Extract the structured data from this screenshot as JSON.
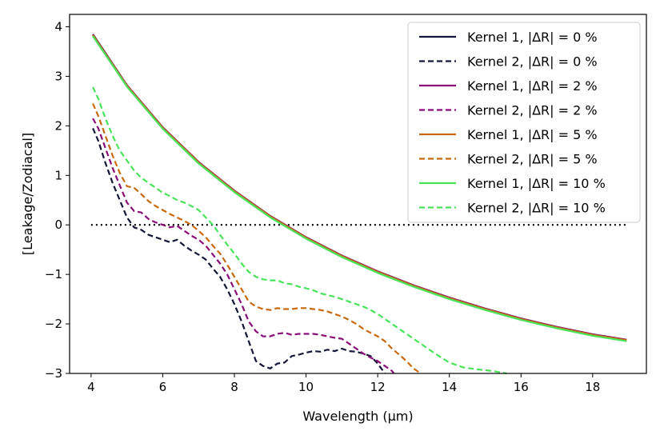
{
  "chart_data": {
    "type": "line",
    "xlabel": "Wavelength (μm)",
    "ylabel": "[Leakage/Zodiacal]",
    "xlim": [
      3.4,
      19.5
    ],
    "ylim": [
      -3,
      4.25
    ],
    "xticks": [
      "4",
      "6",
      "8",
      "10",
      "12",
      "14",
      "16",
      "18"
    ],
    "yticks": [
      "−3",
      "−2",
      "−1",
      "0",
      "1",
      "2",
      "3",
      "4"
    ],
    "legend_position": "top-right",
    "reference_line": {
      "y": 0,
      "x_range": [
        4,
        19
      ],
      "style": "dotted",
      "color": "#000000"
    },
    "series": [
      {
        "name": "Kernel 1, |ΔR| = 0 %",
        "color": "#12173a",
        "dash": "solid",
        "x": [
          4.05,
          5,
          6,
          7,
          8,
          9,
          10,
          11,
          12,
          13,
          14,
          15,
          16,
          17,
          18,
          18.95
        ],
        "y": [
          3.85,
          2.82,
          1.97,
          1.27,
          0.69,
          0.18,
          -0.25,
          -0.62,
          -0.94,
          -1.22,
          -1.47,
          -1.69,
          -1.89,
          -2.06,
          -2.21,
          -2.32
        ]
      },
      {
        "name": "Kernel 2, |ΔR| = 0 %",
        "color": "#12173a",
        "dash": "dashed",
        "x": [
          4.05,
          4.2,
          4.4,
          4.6,
          4.8,
          5.0,
          5.2,
          5.4,
          5.6,
          5.8,
          6.0,
          6.2,
          6.4,
          6.6,
          6.8,
          7.0,
          7.2,
          7.4,
          7.6,
          7.8,
          8.0,
          8.2,
          8.4,
          8.6,
          8.8,
          9.0,
          9.2,
          9.4,
          9.6,
          9.8,
          10.0,
          10.2,
          10.4,
          10.6,
          10.8,
          11.0,
          11.2,
          11.4,
          11.6,
          11.8,
          12.0,
          12.2
        ],
        "y": [
          1.95,
          1.7,
          1.25,
          0.85,
          0.5,
          0.15,
          -0.05,
          -0.1,
          -0.2,
          -0.25,
          -0.3,
          -0.35,
          -0.3,
          -0.42,
          -0.52,
          -0.6,
          -0.7,
          -0.88,
          -1.05,
          -1.3,
          -1.6,
          -1.95,
          -2.35,
          -2.75,
          -2.85,
          -2.9,
          -2.8,
          -2.78,
          -2.65,
          -2.62,
          -2.58,
          -2.55,
          -2.56,
          -2.52,
          -2.55,
          -2.5,
          -2.55,
          -2.56,
          -2.6,
          -2.65,
          -2.8,
          -3.0
        ]
      },
      {
        "name": "Kernel 1, |ΔR| = 2 %",
        "color": "#8a0d78",
        "dash": "solid",
        "x": [
          4.05,
          5,
          6,
          7,
          8,
          9,
          10,
          11,
          12,
          13,
          14,
          15,
          16,
          17,
          18,
          18.95
        ],
        "y": [
          3.84,
          2.82,
          1.97,
          1.27,
          0.69,
          0.18,
          -0.25,
          -0.62,
          -0.94,
          -1.22,
          -1.47,
          -1.69,
          -1.89,
          -2.06,
          -2.21,
          -2.32
        ]
      },
      {
        "name": "Kernel 2, |ΔR| = 2 %",
        "color": "#8a0d78",
        "dash": "dashed",
        "x": [
          4.05,
          4.2,
          4.4,
          4.6,
          4.8,
          5.0,
          5.2,
          5.4,
          5.6,
          5.8,
          6.0,
          6.2,
          6.4,
          6.6,
          6.8,
          7.0,
          7.2,
          7.4,
          7.6,
          7.8,
          8.0,
          8.2,
          8.4,
          8.6,
          8.8,
          9.0,
          9.2,
          9.4,
          9.6,
          9.8,
          10.0,
          10.2,
          10.4,
          10.6,
          10.8,
          11.0,
          11.2,
          11.4,
          11.6,
          11.8,
          12.0,
          12.2,
          12.4,
          12.45
        ],
        "y": [
          2.15,
          1.95,
          1.55,
          1.15,
          0.8,
          0.45,
          0.28,
          0.25,
          0.12,
          0.05,
          0.0,
          -0.05,
          -0.02,
          -0.12,
          -0.22,
          -0.3,
          -0.42,
          -0.6,
          -0.78,
          -1.0,
          -1.3,
          -1.6,
          -1.95,
          -2.15,
          -2.25,
          -2.25,
          -2.2,
          -2.18,
          -2.22,
          -2.2,
          -2.2,
          -2.2,
          -2.22,
          -2.25,
          -2.28,
          -2.3,
          -2.4,
          -2.5,
          -2.6,
          -2.68,
          -2.75,
          -2.85,
          -2.95,
          -3.0
        ]
      },
      {
        "name": "Kernel 1, |ΔR| = 5 %",
        "color": "#c8690e",
        "dash": "solid",
        "x": [
          4.05,
          5,
          6,
          7,
          8,
          9,
          10,
          11,
          12,
          13,
          14,
          15,
          16,
          17,
          18,
          18.95
        ],
        "y": [
          3.83,
          2.81,
          1.96,
          1.26,
          0.68,
          0.17,
          -0.26,
          -0.63,
          -0.95,
          -1.23,
          -1.48,
          -1.7,
          -1.9,
          -2.07,
          -2.22,
          -2.33
        ]
      },
      {
        "name": "Kernel 2, |ΔR| = 5 %",
        "color": "#c8690e",
        "dash": "dashed",
        "x": [
          4.05,
          4.2,
          4.4,
          4.6,
          4.8,
          5.0,
          5.2,
          5.4,
          5.6,
          5.8,
          6.0,
          6.2,
          6.4,
          6.6,
          6.8,
          7.0,
          7.2,
          7.4,
          7.6,
          7.8,
          8.0,
          8.2,
          8.4,
          8.6,
          8.8,
          9.0,
          9.2,
          9.4,
          9.6,
          9.8,
          10.0,
          10.2,
          10.4,
          10.6,
          10.8,
          11.0,
          11.2,
          11.4,
          11.6,
          11.8,
          12.0,
          12.2,
          12.4,
          12.6,
          12.8,
          13.0,
          13.2
        ],
        "y": [
          2.45,
          2.2,
          1.8,
          1.4,
          1.05,
          0.78,
          0.75,
          0.62,
          0.48,
          0.38,
          0.3,
          0.22,
          0.15,
          0.08,
          0.0,
          -0.12,
          -0.25,
          -0.42,
          -0.58,
          -0.8,
          -1.05,
          -1.3,
          -1.55,
          -1.65,
          -1.7,
          -1.72,
          -1.68,
          -1.7,
          -1.7,
          -1.68,
          -1.68,
          -1.7,
          -1.72,
          -1.75,
          -1.8,
          -1.85,
          -1.92,
          -2.0,
          -2.1,
          -2.18,
          -2.25,
          -2.35,
          -2.5,
          -2.62,
          -2.75,
          -2.9,
          -3.0
        ]
      },
      {
        "name": "Kernel 1, |ΔR| = 10 %",
        "color": "#49e35a",
        "dash": "solid",
        "x": [
          4.05,
          5,
          6,
          7,
          8,
          9,
          10,
          11,
          12,
          13,
          14,
          15,
          16,
          17,
          18,
          18.95
        ],
        "y": [
          3.81,
          2.79,
          1.94,
          1.24,
          0.66,
          0.15,
          -0.28,
          -0.65,
          -0.97,
          -1.25,
          -1.5,
          -1.72,
          -1.92,
          -2.09,
          -2.24,
          -2.35
        ]
      },
      {
        "name": "Kernel 2, |ΔR| = 10 %",
        "color": "#49e35a",
        "dash": "dashed",
        "x": [
          4.05,
          4.2,
          4.4,
          4.6,
          4.8,
          5.0,
          5.2,
          5.4,
          5.6,
          5.8,
          6.0,
          6.2,
          6.4,
          6.6,
          6.8,
          7.0,
          7.2,
          7.4,
          7.6,
          7.8,
          8.0,
          8.2,
          8.4,
          8.6,
          8.8,
          9.0,
          9.2,
          9.4,
          9.6,
          9.8,
          10.0,
          10.2,
          10.4,
          10.6,
          10.8,
          11.0,
          11.2,
          11.4,
          11.6,
          11.8,
          12.0,
          12.4,
          12.8,
          13.2,
          13.6,
          14.0,
          14.4,
          14.8,
          15.2,
          15.6
        ],
        "y": [
          2.78,
          2.55,
          2.15,
          1.8,
          1.5,
          1.3,
          1.1,
          0.95,
          0.85,
          0.75,
          0.65,
          0.58,
          0.5,
          0.45,
          0.38,
          0.3,
          0.15,
          0.0,
          -0.2,
          -0.4,
          -0.58,
          -0.78,
          -0.95,
          -1.05,
          -1.1,
          -1.12,
          -1.12,
          -1.18,
          -1.2,
          -1.25,
          -1.28,
          -1.32,
          -1.38,
          -1.42,
          -1.45,
          -1.5,
          -1.55,
          -1.6,
          -1.65,
          -1.72,
          -1.8,
          -2.0,
          -2.2,
          -2.4,
          -2.6,
          -2.78,
          -2.88,
          -2.92,
          -2.95,
          -3.0
        ]
      }
    ]
  }
}
